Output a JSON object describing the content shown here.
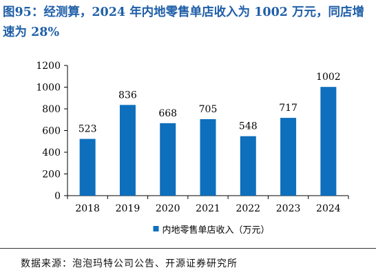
{
  "figure": {
    "title": "图95：经测算，2024 年内地零售单店收入为 1002 万元，同店增速为 28%",
    "source": "数据来源：泡泡玛特公司公告、开源证券研究所"
  },
  "colors": {
    "title": "#1f5fa8",
    "bar": "#0e6fbd",
    "axis": "#000000"
  },
  "chart_data": {
    "type": "bar",
    "categories": [
      "2018",
      "2019",
      "2020",
      "2021",
      "2022",
      "2023",
      "2024"
    ],
    "series": [
      {
        "name": "内地零售单店收入（万元）",
        "values": [
          523,
          836,
          668,
          705,
          548,
          717,
          1002
        ]
      }
    ],
    "ylim": [
      0,
      1200
    ],
    "yticks": [
      0,
      200,
      400,
      600,
      800,
      1000,
      1200
    ],
    "data_labels": true,
    "grid": false,
    "legend_position": "bottom"
  }
}
